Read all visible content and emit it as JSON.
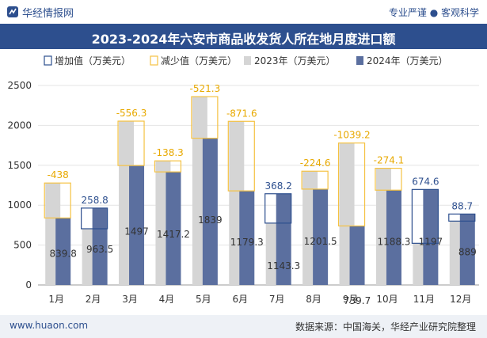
{
  "header": {
    "logo_text": "华经情报网",
    "tagline": "专业严谨 ● 客观科学"
  },
  "footer": {
    "website": "www.huaon.com",
    "source": "数据来源：中国海关，华经产业研究院整理"
  },
  "colors": {
    "series_2023": "#d5d5d5",
    "series_2024": "#5b6f9f",
    "increase": "#2d4f8e",
    "decrease": "#f5c242"
  },
  "chart_data": {
    "type": "bar",
    "title": "2023-2024年六安市商品收发货人所在地月度进口额",
    "categories": [
      "1月",
      "2月",
      "3月",
      "4月",
      "5月",
      "6月",
      "7月",
      "8月",
      "9月",
      "10月",
      "11月",
      "12月"
    ],
    "series": [
      {
        "name": "2023年（万美元）",
        "values": [
          1277.8,
          704.7,
          2053.3,
          1555.5,
          2360.3,
          2050.9,
          775.1,
          1426.1,
          1778.9,
          1462.4,
          522.4,
          800.3
        ]
      },
      {
        "name": "2024年（万美元）",
        "values": [
          839.8,
          963.5,
          1497,
          1417.2,
          1839,
          1179.3,
          1143.3,
          1201.5,
          739.7,
          1188.3,
          1197,
          889
        ]
      }
    ],
    "changes": [
      -438,
      258.8,
      -556.3,
      -138.3,
      -521.3,
      -871.6,
      368.2,
      -224.6,
      -1039.2,
      -274.1,
      674.6,
      88.7
    ],
    "legend": [
      "增加值（万美元）",
      "减少值（万美元）",
      "2023年（万美元）",
      "2024年（万美元）"
    ],
    "legend_position": "top",
    "ylim": [
      0,
      2500
    ],
    "yticks": [
      0,
      500,
      1000,
      1500,
      2000,
      2500
    ]
  }
}
